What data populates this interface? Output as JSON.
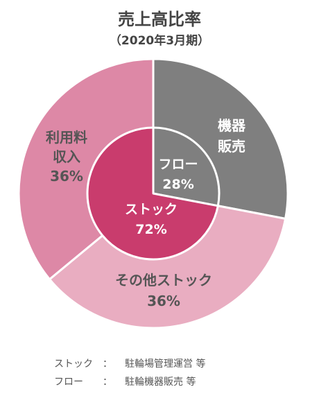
{
  "chart_data": {
    "type": "pie",
    "title": "売上高比率",
    "subtitle": "（2020年3月期）",
    "inner_ring": [
      {
        "label": "フロー",
        "value": 28,
        "value_label": "28%",
        "color": "#7f7f7f"
      },
      {
        "label": "ストック",
        "value": 72,
        "value_label": "72%",
        "color": "#c93c6d"
      }
    ],
    "outer_ring": [
      {
        "label": "機器販売",
        "label_lines": [
          "機器",
          "販売"
        ],
        "value": 28,
        "color": "#7f7f7f"
      },
      {
        "label": "その他ストック",
        "label_lines": [
          "その他ストック",
          "36%"
        ],
        "value": 36,
        "color": "#e9adc1"
      },
      {
        "label": "利用料収入",
        "label_lines": [
          "利用料",
          "収入",
          "36%"
        ],
        "value": 36,
        "color": "#dd88a6"
      }
    ]
  },
  "notes": [
    {
      "key": "ストック　：",
      "value": "駐輪場管理運営 等"
    },
    {
      "key": "フロー　　：",
      "value": "駐輪機器販売 等"
    }
  ]
}
